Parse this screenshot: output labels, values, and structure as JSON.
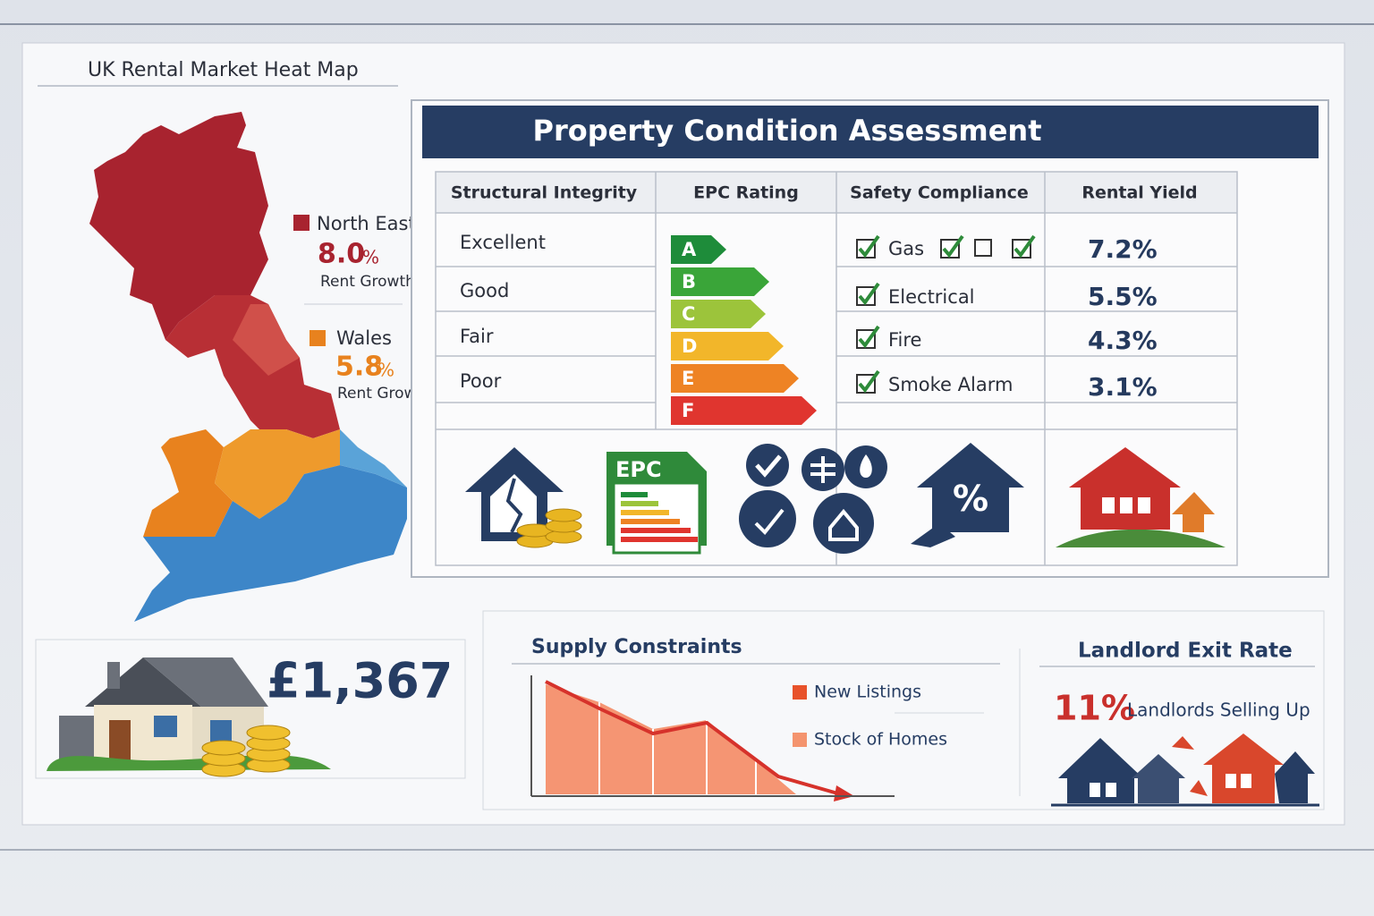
{
  "heat_map": {
    "title": "UK Rental Market Heat Map",
    "regions": [
      {
        "name": "North East",
        "value": "8.0",
        "unit": "%",
        "caption": "Rent Growth"
      },
      {
        "name": "Wales",
        "value": "5.8",
        "unit": "%",
        "caption": "Rent Growth"
      }
    ]
  },
  "assessment": {
    "title": "Property Condition Assessment",
    "headers": [
      "Structural Integrity",
      "EPC Rating",
      "Safety Compliance",
      "Rental Yield"
    ],
    "conditions": [
      "Excellent",
      "Good",
      "Fair",
      "Poor"
    ],
    "epc_ratings": [
      "A",
      "B",
      "C",
      "D",
      "E",
      "F"
    ],
    "safety_checks": [
      "Gas",
      "Electrical",
      "Fire",
      "Smoke Alarm"
    ],
    "rental_yields": [
      "7.2%",
      "5.5%",
      "4.3%",
      "3.1%"
    ],
    "epc_icon_label": "EPC"
  },
  "average_rent": {
    "value": "£1,367"
  },
  "supply": {
    "title": "Supply Constraints",
    "legend": [
      "New Listings",
      "Stock of Homes"
    ]
  },
  "landlord_exit": {
    "title": "Landlord Exit Rate",
    "value": "11%",
    "caption": "Landlords Selling Up"
  }
}
